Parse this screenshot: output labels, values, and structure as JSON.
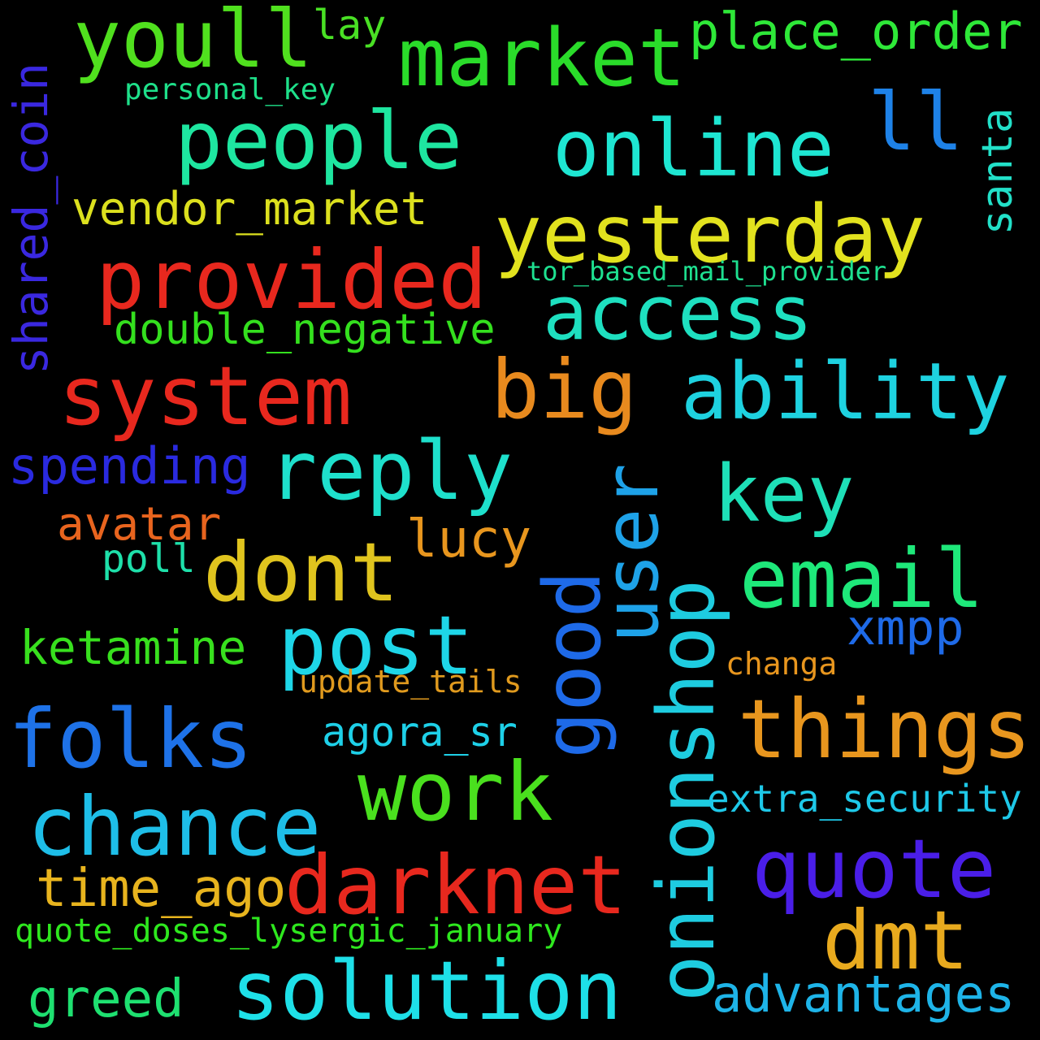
{
  "words": [
    {
      "text": "youll",
      "color": "#50e01e"
    },
    {
      "text": "lay",
      "color": "#49e024"
    },
    {
      "text": "market",
      "color": "#2adc2a"
    },
    {
      "text": "place_order",
      "color": "#2ee838"
    },
    {
      "text": "personal_key",
      "color": "#1ee08a"
    },
    {
      "text": "people",
      "color": "#1ee6a0"
    },
    {
      "text": "online",
      "color": "#1ee6d2"
    },
    {
      "text": "ll",
      "color": "#1e82e8"
    },
    {
      "text": "shared_coin",
      "color": "#3a28e0"
    },
    {
      "text": "santa",
      "color": "#22e0c8"
    },
    {
      "text": "vendor_market",
      "color": "#dce01e"
    },
    {
      "text": "yesterday",
      "color": "#e2e21e"
    },
    {
      "text": "provided",
      "color": "#e8281e"
    },
    {
      "text": "tor_based_mail_provider",
      "color": "#1ee090"
    },
    {
      "text": "access",
      "color": "#1ee0c0"
    },
    {
      "text": "double_negative",
      "color": "#34e01e"
    },
    {
      "text": "system",
      "color": "#e8281e"
    },
    {
      "text": "big",
      "color": "#e88a1e"
    },
    {
      "text": "ability",
      "color": "#1ed2e0"
    },
    {
      "text": "spending",
      "color": "#2a2ae0"
    },
    {
      "text": "reply",
      "color": "#1ee0cc"
    },
    {
      "text": "key",
      "color": "#1ee0b8"
    },
    {
      "text": "user",
      "color": "#1ea2e8"
    },
    {
      "text": "avatar",
      "color": "#e8641e"
    },
    {
      "text": "lucy",
      "color": "#e8961e"
    },
    {
      "text": "poll",
      "color": "#1ee0aa"
    },
    {
      "text": "dont",
      "color": "#e0c41e"
    },
    {
      "text": "email",
      "color": "#1ee87a"
    },
    {
      "text": "good",
      "color": "#1e6ae8"
    },
    {
      "text": "onionshop",
      "color": "#1ecce0"
    },
    {
      "text": "post",
      "color": "#1ed6e8"
    },
    {
      "text": "xmpp",
      "color": "#1e6ae8"
    },
    {
      "text": "ketamine",
      "color": "#38e01e"
    },
    {
      "text": "update_tails",
      "color": "#e09a1e"
    },
    {
      "text": "changa",
      "color": "#e8961e"
    },
    {
      "text": "folks",
      "color": "#1e72e8"
    },
    {
      "text": "things",
      "color": "#e8961e"
    },
    {
      "text": "agora_sr",
      "color": "#1ed0e8"
    },
    {
      "text": "work",
      "color": "#4ae01e"
    },
    {
      "text": "chance",
      "color": "#1ebee8"
    },
    {
      "text": "extra_security",
      "color": "#1ec8e8"
    },
    {
      "text": "quote",
      "color": "#4a1ee8"
    },
    {
      "text": "time_ago",
      "color": "#e8b41e"
    },
    {
      "text": "darknet",
      "color": "#e8281e"
    },
    {
      "text": "dmt",
      "color": "#e8aa1e"
    },
    {
      "text": "quote_doses_lysergic_january",
      "color": "#2ee81e"
    },
    {
      "text": "solution",
      "color": "#1ee0e8"
    },
    {
      "text": "greed",
      "color": "#1ee070"
    },
    {
      "text": "advantages",
      "color": "#1eb4e8"
    }
  ]
}
